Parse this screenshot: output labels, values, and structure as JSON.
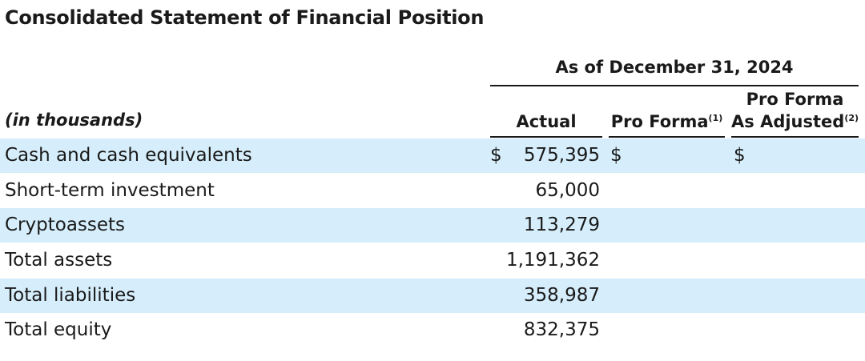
{
  "title": "Consolidated Statement of Financial Position",
  "period_header": "As of December 31, 2024",
  "units_label": "(in thousands)",
  "columns": {
    "actual": "Actual",
    "pro_forma": {
      "label": "Pro Forma",
      "note": "(1)"
    },
    "pro_forma_adjusted": {
      "line1": "Pro Forma",
      "line2": "As Adjusted",
      "note": "(2)"
    }
  },
  "currency_symbol": "$",
  "rows": [
    {
      "label": "Cash and cash equivalents",
      "actual": "575,395"
    },
    {
      "label": "Short-term investment",
      "actual": "65,000"
    },
    {
      "label": "Cryptoassets",
      "actual": "113,279"
    },
    {
      "label": "Total assets",
      "actual": "1,191,362"
    },
    {
      "label": "Total liabilities",
      "actual": "358,987"
    },
    {
      "label": "Total equity",
      "actual": "832,375"
    }
  ]
}
